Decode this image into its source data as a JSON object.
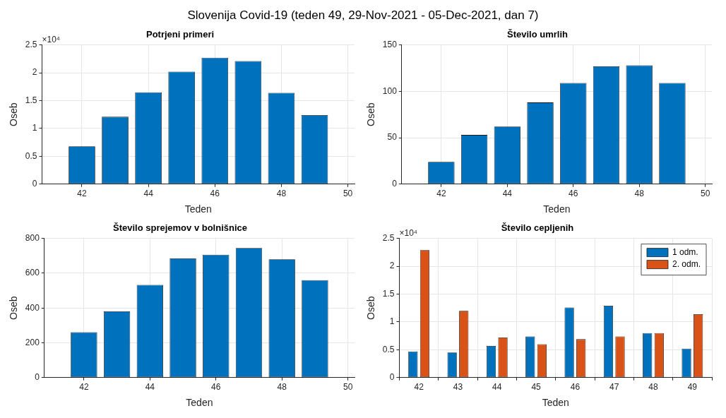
{
  "chart_data": [
    {
      "type": "bar",
      "title": "Potrjeni primeri",
      "xlabel": "Teden",
      "ylabel": "Oseb",
      "x": [
        42,
        43,
        44,
        45,
        46,
        47,
        48,
        49
      ],
      "values": [
        0.68,
        1.21,
        1.65,
        2.02,
        2.27,
        2.21,
        1.64,
        1.24
      ],
      "color": "#0072bd",
      "xlim": [
        40.8,
        50.2
      ],
      "xticks": [
        42,
        44,
        46,
        48,
        50
      ],
      "ylim": [
        0,
        2.5
      ],
      "yticks": [
        0,
        0.5,
        1,
        1.5,
        2,
        2.5
      ],
      "grid": true,
      "legend": false,
      "annotations": [
        "×10⁴",
        "Slovenija Covid-19 (teden 49, 29-Nov-2021 - 05-Dec-2021, dan 7)"
      ]
    },
    {
      "type": "bar",
      "title": "Število umrlih",
      "xlabel": "Teden",
      "ylabel": "Oseb",
      "x": [
        42,
        43,
        44,
        45,
        46,
        47,
        48,
        49
      ],
      "values": [
        24,
        53,
        62,
        88,
        109,
        127,
        128,
        109
      ],
      "color": "#0072bd",
      "xlim": [
        40.8,
        50.2
      ],
      "xticks": [
        42,
        44,
        46,
        48,
        50
      ],
      "ylim": [
        0,
        150
      ],
      "yticks": [
        0,
        50,
        100,
        150
      ],
      "grid": true,
      "legend": false
    },
    {
      "type": "bar",
      "title": "Število sprejemov v bolnišnice",
      "xlabel": "Teden",
      "ylabel": "Oseb",
      "x": [
        42,
        43,
        44,
        45,
        46,
        47,
        48,
        49
      ],
      "values": [
        261,
        381,
        533,
        685,
        706,
        745,
        680,
        560
      ],
      "color": "#0072bd",
      "xlim": [
        40.8,
        50.2
      ],
      "xticks": [
        42,
        44,
        46,
        48,
        50
      ],
      "ylim": [
        0,
        800
      ],
      "yticks": [
        0,
        200,
        400,
        600,
        800
      ],
      "grid": true,
      "legend": false
    },
    {
      "type": "bar",
      "title": "Število cepljenih",
      "xlabel": "Teden",
      "ylabel": "Oseb",
      "categories": [
        "42",
        "43",
        "44",
        "45",
        "46",
        "47",
        "48",
        "49"
      ],
      "series": [
        {
          "name": "1 odm.",
          "color": "#0072bd",
          "values": [
            0.47,
            0.45,
            0.57,
            0.74,
            1.26,
            1.29,
            0.8,
            0.52
          ]
        },
        {
          "name": "2. odm.",
          "color": "#d95319",
          "values": [
            2.29,
            1.2,
            0.72,
            0.6,
            0.69,
            0.74,
            0.8,
            1.14
          ]
        }
      ],
      "ylim": [
        0,
        2.5
      ],
      "yticks": [
        0,
        0.5,
        1,
        1.5,
        2,
        2.5
      ],
      "grid": true,
      "legend": "top right",
      "annotations": [
        "×10⁴"
      ]
    }
  ]
}
